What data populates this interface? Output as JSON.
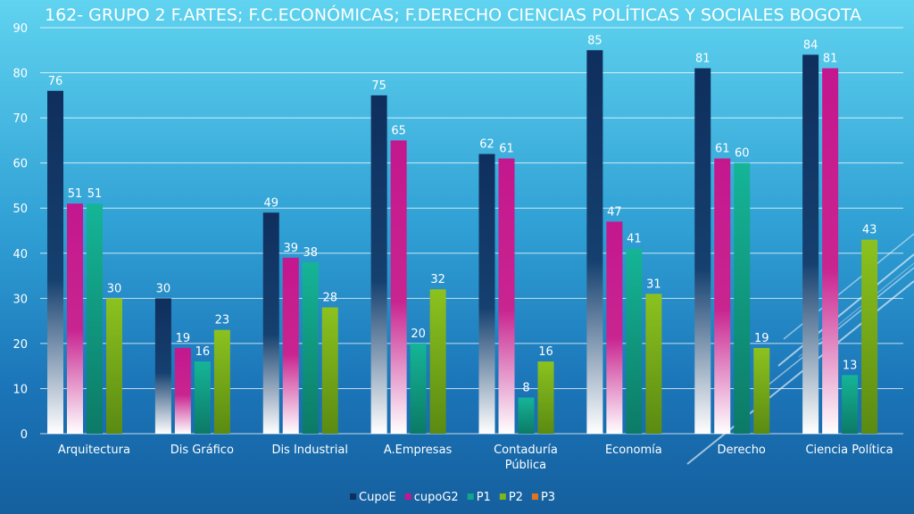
{
  "chart_data": {
    "type": "bar",
    "title": "162-  GRUPO 2  F.ARTES;  F.C.ECONÓMICAS;  F.DERECHO CIENCIAS POLÍTICAS Y SOCIALES  BOGOTA",
    "categories": [
      "Arquitectura",
      "Dis Gráfico",
      "Dis Industrial",
      "A.Empresas",
      "Contaduría Pública",
      "Economía",
      "Derecho",
      "Ciencia Política"
    ],
    "series": [
      {
        "name": "CupoE",
        "color": "#0f2f5e",
        "values": [
          76,
          30,
          49,
          75,
          62,
          85,
          81,
          84
        ]
      },
      {
        "name": "cupoG2",
        "color": "#c4178e",
        "values": [
          51,
          19,
          39,
          65,
          61,
          47,
          61,
          81
        ]
      },
      {
        "name": "P1",
        "color": "#11a58a",
        "values": [
          51,
          16,
          38,
          20,
          8,
          41,
          60,
          13
        ]
      },
      {
        "name": "P2",
        "color": "#7fb519",
        "values": [
          30,
          23,
          28,
          32,
          16,
          31,
          19,
          43
        ]
      },
      {
        "name": "P3",
        "color": "#e5731c",
        "values": [
          null,
          null,
          null,
          null,
          null,
          null,
          null,
          null
        ]
      }
    ],
    "ylim": [
      0,
      90
    ],
    "yticks": [
      0,
      10,
      20,
      30,
      40,
      50,
      60,
      70,
      80,
      90
    ],
    "grid": true,
    "legend": "bottom-center"
  }
}
